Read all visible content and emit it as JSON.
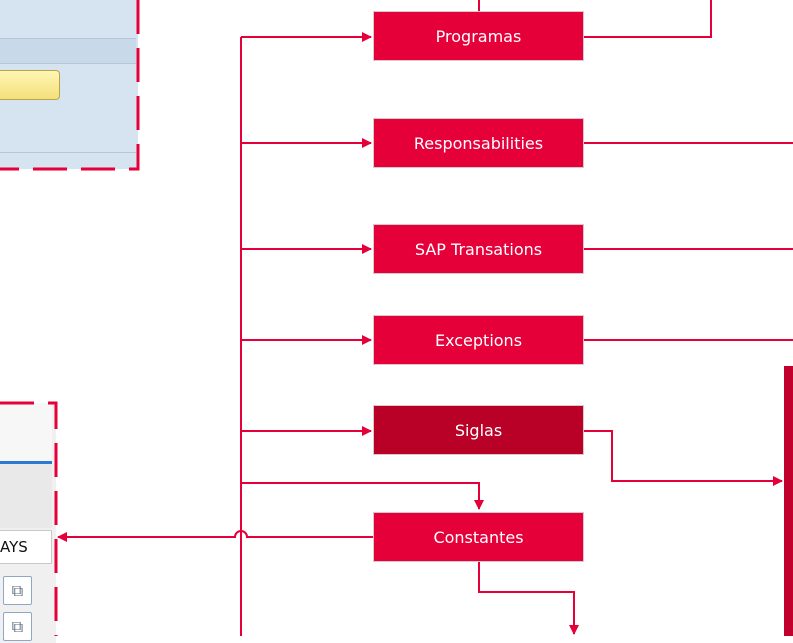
{
  "nodes": {
    "programas": "Programas",
    "responsabilities": "Responsabilities",
    "sap_transations": "SAP Transations",
    "exceptions": "Exceptions",
    "siglas": "Siglas",
    "constantes": "Constantes"
  },
  "left_panel": {
    "field_text": "AYS"
  },
  "colors": {
    "node": "#e5003a",
    "node_active": "#b90026",
    "line": "#e5003a",
    "dashed_border": "#e5003a",
    "sidebar": "#c2002e"
  },
  "icons": {
    "copy": "copy-icon"
  }
}
